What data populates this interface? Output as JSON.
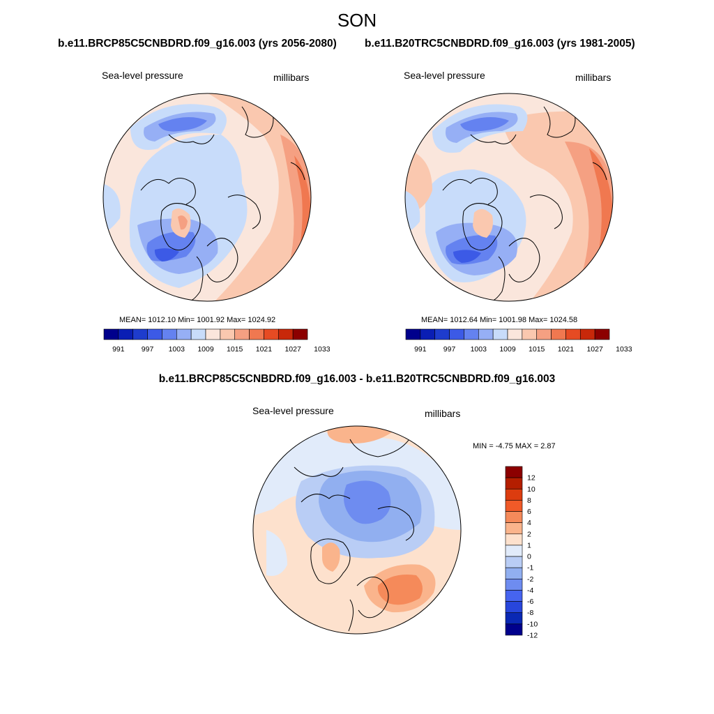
{
  "title": "SON",
  "panels": [
    {
      "id": "future",
      "case_title": "b.e11.BRCP85C5CNBDRD.f09_g16.003 (yrs 2056-2080)",
      "variable": "Sea-level pressure",
      "units": "millibars",
      "stats": "MEAN= 1012.10  Min= 1001.92  Max= 1024.92"
    },
    {
      "id": "historical",
      "case_title": "b.e11.B20TRC5CNBDRD.f09_g16.003 (yrs 1981-2005)",
      "variable": "Sea-level pressure",
      "units": "millibars",
      "stats": "MEAN= 1012.64  Min= 1001.98  Max= 1024.58"
    }
  ],
  "difference": {
    "title": "b.e11.BRCP85C5CNBDRD.f09_g16.003 - b.e11.B20TRC5CNBDRD.f09_g16.003",
    "variable": "Sea-level pressure",
    "units": "millibars",
    "minmax": "MIN =  -4.75 MAX =   2.87"
  },
  "colorbar_abs": {
    "colors": [
      "#00008c",
      "#0a1eb4",
      "#1e3ccd",
      "#3c5ae6",
      "#6482f0",
      "#96aff5",
      "#c8dcfa",
      "#fae6dc",
      "#fac8af",
      "#f5a082",
      "#f07850",
      "#e64b23",
      "#c8280a",
      "#8c0000"
    ],
    "labels": [
      "991",
      "997",
      "1003",
      "1009",
      "1015",
      "1021",
      "1027",
      "1033"
    ]
  },
  "colorbar_diff": {
    "colors": [
      "#8c0000",
      "#b41e00",
      "#dc3c0f",
      "#f05a28",
      "#f58a5a",
      "#fab48c",
      "#fde1cd",
      "#e1ebfa",
      "#b9cdf5",
      "#91aff0",
      "#6e8cf0",
      "#4664f0",
      "#2846dc",
      "#0a28b4",
      "#00008c"
    ],
    "labels": [
      "12",
      "10",
      "8",
      "6",
      "4",
      "2",
      "1",
      "0",
      "-1",
      "-2",
      "-4",
      "-6",
      "-8",
      "-10",
      "-12"
    ]
  }
}
